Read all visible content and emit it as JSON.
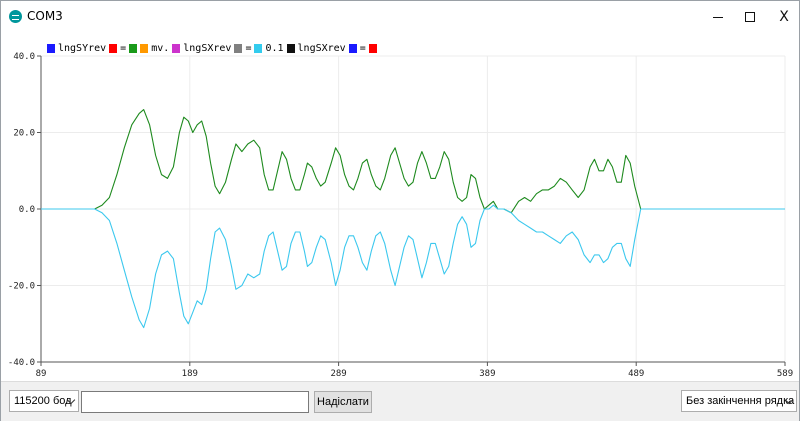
{
  "window": {
    "title": "COM3",
    "controls": {
      "minimize": "minimize",
      "maximize": "maximize",
      "close": "X"
    }
  },
  "legend": [
    {
      "label": "lngSYrev",
      "color": "#1a1aff"
    },
    {
      "label": "=",
      "color": "#ff0000"
    },
    {
      "label": "",
      "color": "#1a9a1a"
    },
    {
      "label": "mv.",
      "color": "#ff9900"
    },
    {
      "label": "lngSXrev",
      "color": "#cc33cc"
    },
    {
      "label": "=",
      "color": "#808080"
    },
    {
      "label": "0.1",
      "color": "#33ccee"
    },
    {
      "label": "lngSXrev",
      "color": "#111111"
    },
    {
      "label": "=",
      "color": "#1a1aff"
    },
    {
      "label": "",
      "color": "#ff0000"
    }
  ],
  "chart_data": {
    "type": "line",
    "xlim": [
      89,
      589
    ],
    "ylim": [
      -40,
      40
    ],
    "x_ticks": [
      "89",
      "189",
      "289",
      "389",
      "489",
      "589"
    ],
    "y_ticks": [
      "40.0",
      "20.0",
      "0.0",
      "-20.0",
      "-40.0"
    ],
    "grid": true,
    "series": [
      {
        "color": "#1e8a1e",
        "points": [
          [
            89,
            0
          ],
          [
            125,
            0
          ],
          [
            130,
            1
          ],
          [
            135,
            3
          ],
          [
            140,
            9
          ],
          [
            145,
            16
          ],
          [
            150,
            22
          ],
          [
            155,
            25
          ],
          [
            158,
            26
          ],
          [
            162,
            22
          ],
          [
            166,
            14
          ],
          [
            170,
            9
          ],
          [
            174,
            8
          ],
          [
            178,
            11
          ],
          [
            182,
            20
          ],
          [
            185,
            24
          ],
          [
            188,
            23
          ],
          [
            191,
            20
          ],
          [
            194,
            22
          ],
          [
            197,
            23
          ],
          [
            200,
            19
          ],
          [
            203,
            12
          ],
          [
            206,
            6
          ],
          [
            209,
            4
          ],
          [
            213,
            7
          ],
          [
            217,
            13
          ],
          [
            220,
            17
          ],
          [
            224,
            15
          ],
          [
            228,
            17
          ],
          [
            232,
            18
          ],
          [
            236,
            16
          ],
          [
            239,
            9
          ],
          [
            242,
            5
          ],
          [
            245,
            5
          ],
          [
            248,
            10
          ],
          [
            251,
            15
          ],
          [
            254,
            13
          ],
          [
            257,
            8
          ],
          [
            260,
            5
          ],
          [
            263,
            5
          ],
          [
            266,
            9
          ],
          [
            268,
            12
          ],
          [
            271,
            11
          ],
          [
            274,
            8
          ],
          [
            277,
            6
          ],
          [
            280,
            7
          ],
          [
            284,
            12
          ],
          [
            287,
            16
          ],
          [
            290,
            14
          ],
          [
            293,
            9
          ],
          [
            296,
            6
          ],
          [
            299,
            5
          ],
          [
            302,
            8
          ],
          [
            305,
            12
          ],
          [
            308,
            13
          ],
          [
            311,
            9
          ],
          [
            314,
            6
          ],
          [
            317,
            5
          ],
          [
            320,
            8
          ],
          [
            324,
            14
          ],
          [
            327,
            16
          ],
          [
            330,
            12
          ],
          [
            333,
            8
          ],
          [
            336,
            6
          ],
          [
            339,
            7
          ],
          [
            342,
            12
          ],
          [
            345,
            15
          ],
          [
            348,
            12
          ],
          [
            351,
            8
          ],
          [
            354,
            8
          ],
          [
            357,
            11
          ],
          [
            360,
            15
          ],
          [
            363,
            13
          ],
          [
            366,
            7
          ],
          [
            369,
            3
          ],
          [
            372,
            2
          ],
          [
            375,
            3
          ],
          [
            378,
            9
          ],
          [
            381,
            8
          ],
          [
            384,
            3
          ],
          [
            387,
            0
          ],
          [
            390,
            1
          ],
          [
            393,
            2
          ],
          [
            396,
            0
          ],
          [
            400,
            0
          ],
          [
            405,
            -1
          ],
          [
            410,
            2
          ],
          [
            414,
            3
          ],
          [
            418,
            2
          ],
          [
            422,
            4
          ],
          [
            426,
            5
          ],
          [
            430,
            5
          ],
          [
            434,
            6
          ],
          [
            438,
            8
          ],
          [
            442,
            7
          ],
          [
            446,
            5
          ],
          [
            450,
            3
          ],
          [
            454,
            5
          ],
          [
            458,
            11
          ],
          [
            461,
            13
          ],
          [
            464,
            10
          ],
          [
            467,
            10
          ],
          [
            470,
            13
          ],
          [
            473,
            11
          ],
          [
            476,
            7
          ],
          [
            479,
            7
          ],
          [
            482,
            14
          ],
          [
            485,
            12
          ],
          [
            488,
            6
          ],
          [
            492,
            0
          ],
          [
            496,
            0
          ],
          [
            589,
            0
          ]
        ]
      },
      {
        "color": "#3cc8ee",
        "points": [
          [
            89,
            0
          ],
          [
            125,
            0
          ],
          [
            130,
            -1
          ],
          [
            135,
            -3
          ],
          [
            140,
            -9
          ],
          [
            145,
            -16
          ],
          [
            150,
            -23
          ],
          [
            155,
            -29
          ],
          [
            158,
            -31
          ],
          [
            162,
            -26
          ],
          [
            166,
            -17
          ],
          [
            170,
            -12
          ],
          [
            174,
            -11
          ],
          [
            178,
            -13
          ],
          [
            182,
            -22
          ],
          [
            185,
            -28
          ],
          [
            188,
            -30
          ],
          [
            191,
            -27
          ],
          [
            194,
            -24
          ],
          [
            197,
            -25
          ],
          [
            200,
            -21
          ],
          [
            203,
            -13
          ],
          [
            206,
            -6
          ],
          [
            209,
            -5
          ],
          [
            213,
            -8
          ],
          [
            217,
            -15
          ],
          [
            220,
            -21
          ],
          [
            224,
            -20
          ],
          [
            228,
            -17
          ],
          [
            232,
            -18
          ],
          [
            236,
            -17
          ],
          [
            239,
            -11
          ],
          [
            242,
            -7
          ],
          [
            245,
            -6
          ],
          [
            248,
            -11
          ],
          [
            251,
            -16
          ],
          [
            254,
            -15
          ],
          [
            257,
            -9
          ],
          [
            260,
            -6
          ],
          [
            263,
            -6
          ],
          [
            266,
            -11
          ],
          [
            268,
            -15
          ],
          [
            271,
            -14
          ],
          [
            274,
            -10
          ],
          [
            277,
            -7
          ],
          [
            280,
            -8
          ],
          [
            284,
            -14
          ],
          [
            287,
            -20
          ],
          [
            290,
            -16
          ],
          [
            293,
            -10
          ],
          [
            296,
            -7
          ],
          [
            299,
            -7
          ],
          [
            302,
            -10
          ],
          [
            305,
            -14
          ],
          [
            308,
            -16
          ],
          [
            311,
            -11
          ],
          [
            314,
            -7
          ],
          [
            317,
            -6
          ],
          [
            320,
            -9
          ],
          [
            324,
            -16
          ],
          [
            327,
            -20
          ],
          [
            330,
            -15
          ],
          [
            333,
            -10
          ],
          [
            336,
            -7
          ],
          [
            339,
            -8
          ],
          [
            342,
            -13
          ],
          [
            345,
            -18
          ],
          [
            348,
            -14
          ],
          [
            351,
            -9
          ],
          [
            354,
            -9
          ],
          [
            357,
            -13
          ],
          [
            360,
            -17
          ],
          [
            363,
            -15
          ],
          [
            366,
            -9
          ],
          [
            369,
            -4
          ],
          [
            372,
            -2
          ],
          [
            375,
            -4
          ],
          [
            378,
            -10
          ],
          [
            381,
            -9
          ],
          [
            384,
            -3
          ],
          [
            387,
            0
          ],
          [
            390,
            0
          ],
          [
            393,
            1
          ],
          [
            396,
            0
          ],
          [
            400,
            0
          ],
          [
            405,
            -1
          ],
          [
            410,
            -3
          ],
          [
            414,
            -4
          ],
          [
            418,
            -5
          ],
          [
            422,
            -6
          ],
          [
            426,
            -6
          ],
          [
            430,
            -7
          ],
          [
            434,
            -8
          ],
          [
            438,
            -9
          ],
          [
            442,
            -7
          ],
          [
            446,
            -6
          ],
          [
            450,
            -8
          ],
          [
            454,
            -12
          ],
          [
            458,
            -14
          ],
          [
            461,
            -12
          ],
          [
            464,
            -12
          ],
          [
            467,
            -14
          ],
          [
            470,
            -13
          ],
          [
            473,
            -10
          ],
          [
            476,
            -9
          ],
          [
            479,
            -9
          ],
          [
            482,
            -13
          ],
          [
            485,
            -15
          ],
          [
            488,
            -8
          ],
          [
            492,
            0
          ],
          [
            496,
            0
          ],
          [
            589,
            0
          ]
        ]
      }
    ]
  },
  "bottom": {
    "baud": "115200 бод",
    "input_value": "",
    "send_label": "Надіслати",
    "line_ending": "Без закінчення рядка"
  }
}
